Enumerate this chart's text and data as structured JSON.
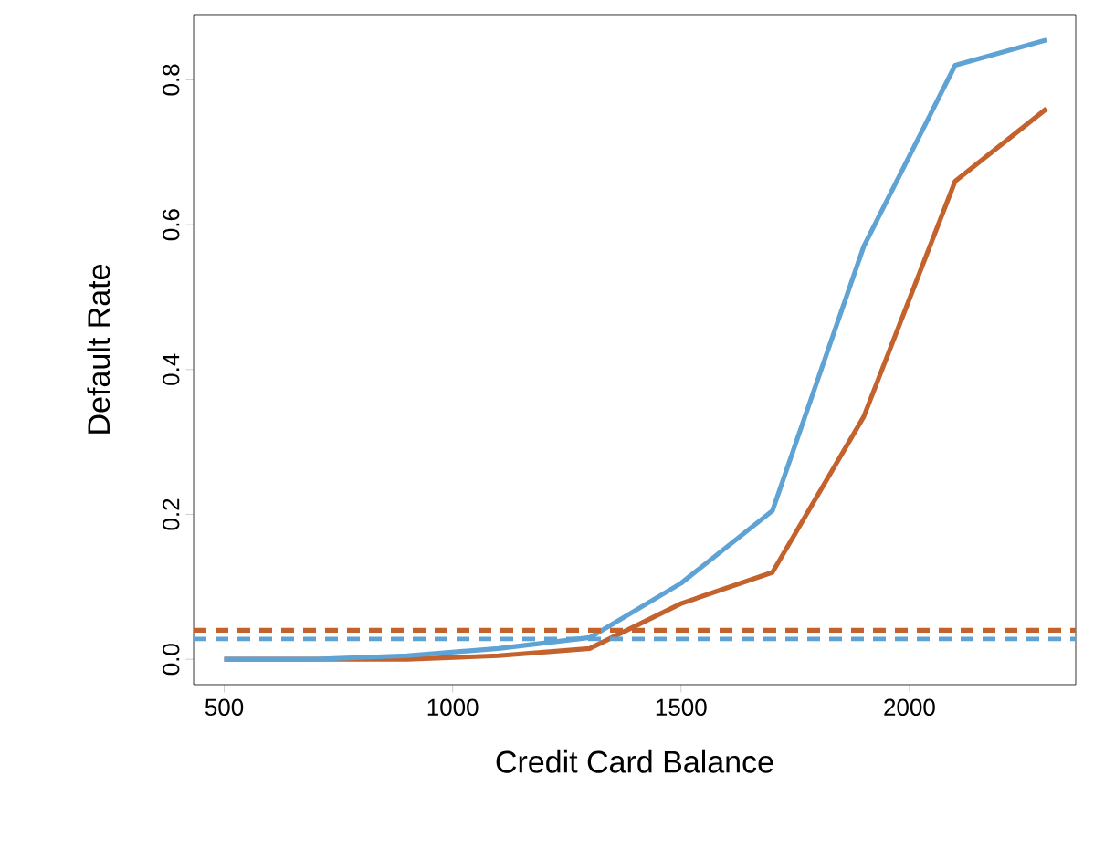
{
  "chart_data": {
    "type": "line",
    "xlabel": "Credit Card Balance",
    "ylabel": "Default Rate",
    "x": [
      500,
      700,
      900,
      1100,
      1300,
      1500,
      1700,
      1900,
      2100,
      2300
    ],
    "series": [
      {
        "color": "#c4622d",
        "values": [
          0,
          0,
          0,
          0.005,
          0.015,
          0.077,
          0.12,
          0.335,
          0.66,
          0.76
        ]
      },
      {
        "color": "#5fa2d4",
        "values": [
          0,
          0,
          0.005,
          0.015,
          0.03,
          0.105,
          0.205,
          0.57,
          0.82,
          0.855
        ]
      }
    ],
    "ref_lines": [
      {
        "axis": "y",
        "value": 0.04,
        "color": "#c4622d",
        "line_style": "dashed"
      },
      {
        "axis": "y",
        "value": 0.028,
        "color": "#5fa2d4",
        "line_style": "dashed"
      }
    ],
    "xlim": [
      433,
      2364
    ],
    "ylim": [
      -0.035,
      0.89
    ],
    "xticks": [
      500,
      1000,
      1500,
      2000
    ],
    "yticks": [
      {
        "value": 0,
        "label": "0.0"
      },
      {
        "value": 0.2,
        "label": "0.2"
      },
      {
        "value": 0.4,
        "label": "0.4"
      },
      {
        "value": 0.6,
        "label": "0.6"
      },
      {
        "value": 0.8,
        "label": "0.8"
      }
    ],
    "grid": false,
    "marker": "none",
    "line_style": "solid"
  }
}
